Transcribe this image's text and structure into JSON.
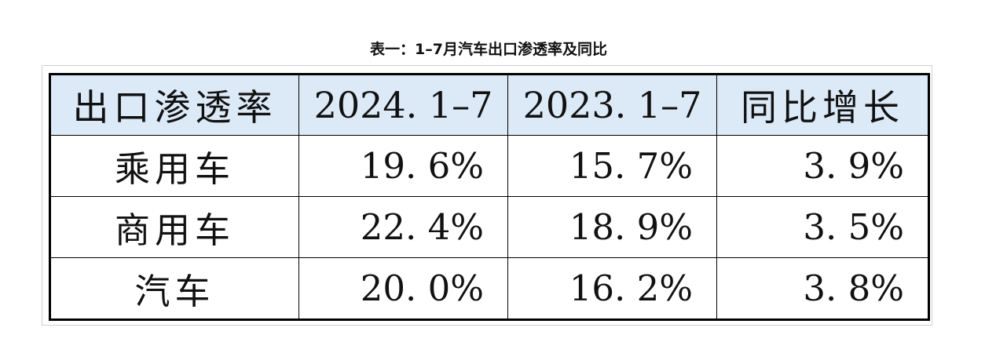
{
  "caption": "表一：1–7月汽车出口渗透率及同比",
  "chart_data": {
    "type": "table",
    "title": "表一：1–7月汽车出口渗透率及同比",
    "columns": [
      "出口渗透率",
      "2024. 1–7",
      "2023. 1–7",
      "同比增长"
    ],
    "rows": [
      {
        "label": "乘用车",
        "values": [
          "19. 6%",
          "15. 7%",
          "3. 9%"
        ]
      },
      {
        "label": "商用车",
        "values": [
          "22. 4%",
          "18. 9%",
          "3. 5%"
        ]
      },
      {
        "label": "汽车",
        "values": [
          "20. 0%",
          "16. 2%",
          "3. 8%"
        ]
      }
    ],
    "numeric": {
      "2024_1_7": [
        19.6,
        22.4,
        20.0
      ],
      "2023_1_7": [
        15.7,
        18.9,
        16.2
      ],
      "yoy_growth": [
        3.9,
        3.5,
        3.8
      ]
    }
  },
  "colors": {
    "header_bg": "#dce9f7",
    "border": "#000000"
  }
}
